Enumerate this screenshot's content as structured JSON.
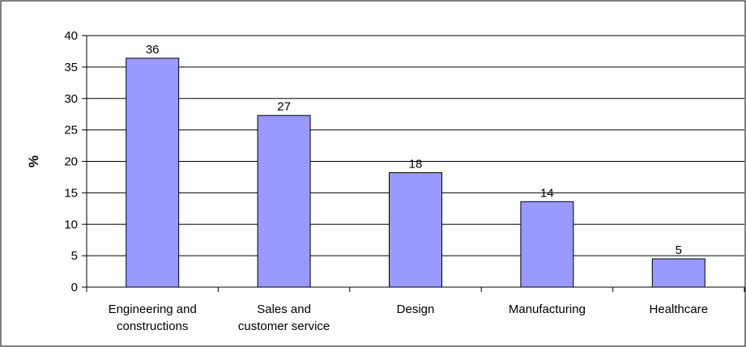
{
  "chart_data": {
    "type": "bar",
    "title": "",
    "xlabel": "",
    "ylabel": "%",
    "ylim": [
      0,
      40
    ],
    "yticks": [
      0,
      5,
      10,
      15,
      20,
      25,
      30,
      35,
      40
    ],
    "grid": true,
    "legend": "none",
    "categories": [
      [
        "Engineering and",
        "constructions"
      ],
      [
        "Sales and",
        "customer service"
      ],
      [
        "Design"
      ],
      [
        "Manufacturing"
      ],
      [
        "Healthcare"
      ]
    ],
    "values": [
      36.4,
      27.3,
      18.2,
      13.6,
      4.5
    ],
    "data_labels": [
      "36",
      "27",
      "18",
      "14",
      "5"
    ],
    "colors": {
      "bar_fill": "#9999ff",
      "bar_stroke": "#000000",
      "grid": "#000000",
      "frame": "#000000"
    }
  }
}
